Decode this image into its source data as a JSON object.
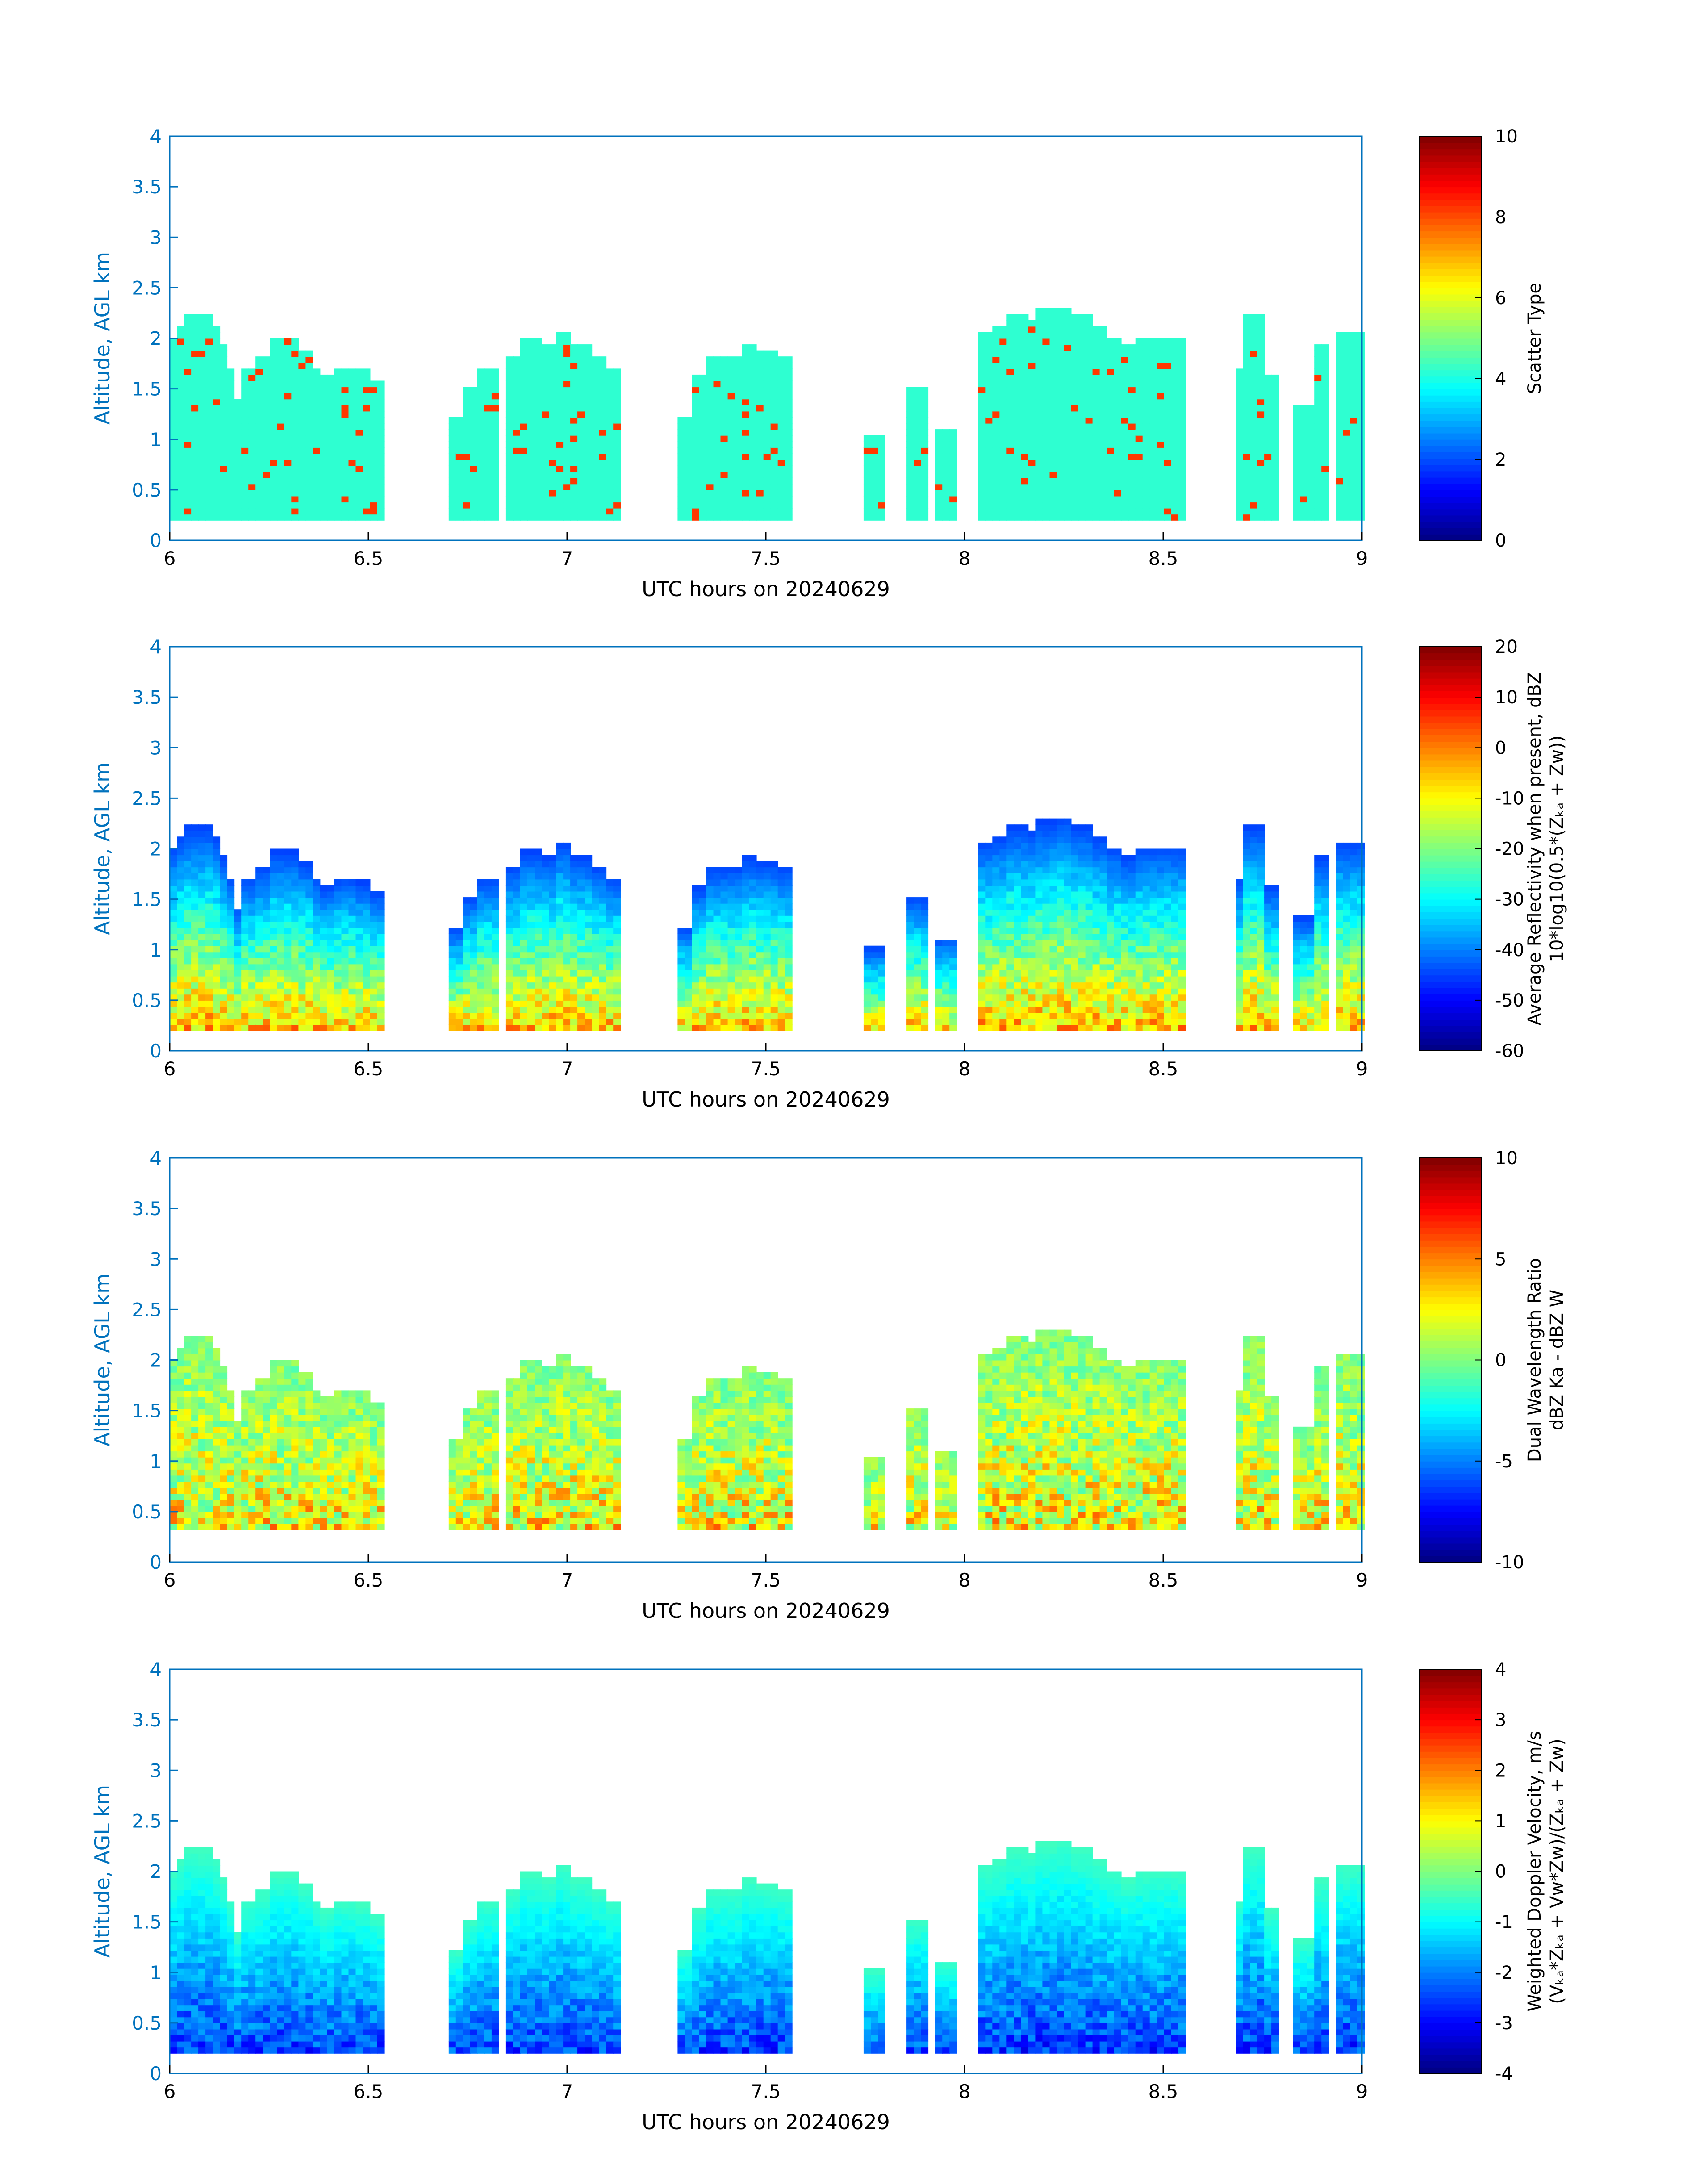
{
  "panels": [
    {
      "name": "scatter-type",
      "xlabel": "UTC hours on 20240629",
      "ylabel": "Altitude, AGL km",
      "cbar_label_lines": [
        "Scatter Type"
      ],
      "cbar_range": [
        0,
        10
      ],
      "cbar_ticks": [
        "0",
        "2",
        "4",
        "6",
        "8",
        "10"
      ],
      "mode": "scatter"
    },
    {
      "name": "reflectivity",
      "xlabel": "UTC hours on 20240629",
      "ylabel": "Altitude, AGL km",
      "cbar_label_lines": [
        "Average Reflectivity when present, dBZ",
        "10*log10(0.5*(Zₖₐ + Zᴡ))"
      ],
      "cbar_range": [
        -60,
        20
      ],
      "cbar_ticks": [
        "-60",
        "-50",
        "-40",
        "-30",
        "-20",
        "-10",
        "0",
        "10",
        "20"
      ],
      "mode": "refl"
    },
    {
      "name": "dual-wavelength-ratio",
      "xlabel": "UTC hours on 20240629",
      "ylabel": "Altitude, AGL km",
      "cbar_label_lines": [
        "Dual Wavelength Ratio",
        "dBZ Ka - dBZ W"
      ],
      "cbar_range": [
        -10,
        10
      ],
      "cbar_ticks": [
        "-10",
        "-5",
        "0",
        "5",
        "10"
      ],
      "mode": "dwr"
    },
    {
      "name": "doppler-velocity",
      "xlabel": "UTC hours on 20240629",
      "ylabel": "Altitude, AGL km",
      "cbar_label_lines": [
        "Weighted Doppler Velocity, m/s",
        "(Vₖₐ*Zₖₐ + Vᴡ*Zᴡ)/(Zₖₐ + Zᴡ)"
      ],
      "cbar_range": [
        -4,
        4
      ],
      "cbar_ticks": [
        "-4",
        "-3",
        "-2",
        "-1",
        "0",
        "1",
        "2",
        "3",
        "4"
      ],
      "mode": "vel"
    }
  ],
  "chart_data": {
    "type": "heatmap",
    "x_ticks": [
      "6",
      "6.5",
      "7",
      "7.5",
      "8",
      "8.5",
      "9"
    ],
    "y_ticks": [
      "0",
      "0.5",
      "1",
      "1.5",
      "2",
      "2.5",
      "3",
      "3.5",
      "4"
    ],
    "xlim": [
      6,
      9
    ],
    "ylim": [
      0,
      4
    ],
    "colormap": "jet",
    "cloud_columns_hours_top_km": [
      [
        6.0,
        1.9
      ],
      [
        6.02,
        2.0
      ],
      [
        6.04,
        2.1
      ],
      [
        6.06,
        2.2
      ],
      [
        6.08,
        2.2
      ],
      [
        6.1,
        2.1
      ],
      [
        6.12,
        1.9
      ],
      [
        6.14,
        1.7
      ],
      [
        6.16,
        1.4
      ],
      [
        6.21,
        1.7
      ],
      [
        6.24,
        1.8
      ],
      [
        6.27,
        1.95
      ],
      [
        6.3,
        1.95
      ],
      [
        6.33,
        1.85
      ],
      [
        6.36,
        1.7
      ],
      [
        6.4,
        1.6
      ],
      [
        6.44,
        1.7
      ],
      [
        6.48,
        1.65
      ],
      [
        6.52,
        1.55
      ],
      [
        6.72,
        1.2
      ],
      [
        6.76,
        1.5
      ],
      [
        6.8,
        1.7
      ],
      [
        6.87,
        1.8
      ],
      [
        6.91,
        1.95
      ],
      [
        6.95,
        1.9
      ],
      [
        6.99,
        2.05
      ],
      [
        7.03,
        1.9
      ],
      [
        7.07,
        1.8
      ],
      [
        7.11,
        1.7
      ],
      [
        7.3,
        1.2
      ],
      [
        7.34,
        1.6
      ],
      [
        7.38,
        1.8
      ],
      [
        7.42,
        1.8
      ],
      [
        7.46,
        1.9
      ],
      [
        7.5,
        1.85
      ],
      [
        7.54,
        1.8
      ],
      [
        7.77,
        1.0
      ],
      [
        7.88,
        1.5
      ],
      [
        7.95,
        1.1
      ],
      [
        8.05,
        2.05
      ],
      [
        8.09,
        2.1
      ],
      [
        8.13,
        2.2
      ],
      [
        8.17,
        2.15
      ],
      [
        8.21,
        2.25
      ],
      [
        8.25,
        2.3
      ],
      [
        8.29,
        2.2
      ],
      [
        8.33,
        2.1
      ],
      [
        8.37,
        2.0
      ],
      [
        8.41,
        1.9
      ],
      [
        8.45,
        2.0
      ],
      [
        8.49,
        2.0
      ],
      [
        8.53,
        2.0
      ],
      [
        8.7,
        1.7
      ],
      [
        8.73,
        2.2
      ],
      [
        8.76,
        1.6
      ],
      [
        8.85,
        1.3
      ],
      [
        8.9,
        1.9
      ],
      [
        8.95,
        2.05
      ],
      [
        8.99,
        2.05
      ]
    ]
  }
}
